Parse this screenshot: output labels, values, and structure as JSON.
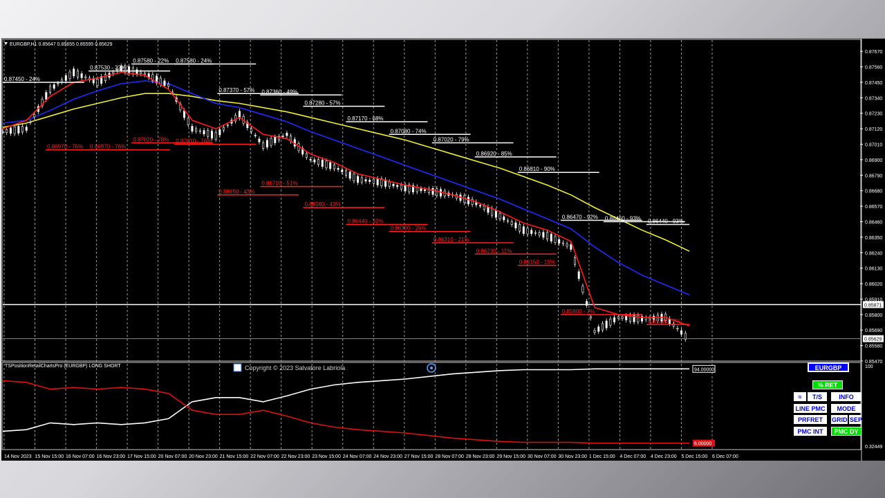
{
  "header": {
    "symbol_line": "EURGBP,H1  0.85647 0.85655 0.85595 0.85629"
  },
  "indicator": {
    "name": "TSPositionRetailChartsPro (EURGBP) LONG SHORT",
    "copyright": "Copyright © 2023 Salvatore Labriola",
    "value_top": "94.00000",
    "value_bottom": "6.00000",
    "scale_top": "100",
    "scale_bottom": "0.32449"
  },
  "buttons": {
    "symbol": "EURGBP",
    "ret": "% RET",
    "ts": "T/S",
    "info": "INFO",
    "line_pmc": "LINE PMC",
    "mode": "MODE",
    "prfret": "PRFRET",
    "grid": "GRID",
    "sep": "SEP",
    "pmc_int": "PMC INT",
    "pmc_dy": "PMC DY"
  },
  "colors": {
    "bg": "#000000",
    "price": "#ffffff",
    "ema_fast": "#ff1a1a",
    "ema_mid": "#1e2bff",
    "ema_slow": "#f2ee30",
    "long_line": "#ffffff",
    "short_line": "#e01010",
    "label_white": "#ffffff",
    "label_red": "#ff2020"
  },
  "chart_data": {
    "type": "line",
    "price_axis": [
      "0.87670",
      "0.87560",
      "0.87450",
      "0.87340",
      "0.87230",
      "0.87120",
      "0.87010",
      "0.86900",
      "0.86790",
      "0.86680",
      "0.86570",
      "0.86460",
      "0.86350",
      "0.86240",
      "0.86130",
      "0.86020",
      "0.85910",
      "0.85800",
      "0.85690",
      "0.85580",
      "0.85470"
    ],
    "price_markers": [
      "0.85871",
      "0.85629"
    ],
    "ylim": [
      0.8547,
      0.8772
    ],
    "time_axis": [
      "14 Nov 2023",
      "15 Nov 15:00",
      "16 Nov 07:00",
      "16 Nov 23:00",
      "17 Nov 15:00",
      "20 Nov 07:00",
      "20 Nov 23:00",
      "21 Nov 15:00",
      "22 Nov 07:00",
      "22 Nov 23:00",
      "23 Nov 15:00",
      "24 Nov 07:00",
      "24 Nov 23:00",
      "27 Nov 15:00",
      "28 Nov 07:00",
      "28 Nov 23:00",
      "29 Nov 15:00",
      "30 Nov 07:00",
      "30 Nov 23:00",
      "1 Dec 15:00",
      "4 Dec 07:00",
      "4 Dec 23:00",
      "5 Dec 15:00",
      "6 Dec 07:00"
    ],
    "price_series": [
      0.871,
      0.8712,
      0.874,
      0.8752,
      0.8745,
      0.8755,
      0.8751,
      0.8743,
      0.8712,
      0.8707,
      0.8722,
      0.87,
      0.8708,
      0.869,
      0.8685,
      0.8676,
      0.8674,
      0.867,
      0.8668,
      0.8665,
      0.8659,
      0.865,
      0.864,
      0.8636,
      0.8628,
      0.8568,
      0.8578,
      0.8577,
      0.8578,
      0.8562
    ],
    "ema_fast": [
      0.8712,
      0.8718,
      0.8735,
      0.8745,
      0.8748,
      0.8752,
      0.875,
      0.874,
      0.8718,
      0.8712,
      0.872,
      0.8708,
      0.8705,
      0.8694,
      0.8688,
      0.868,
      0.8676,
      0.8672,
      0.8669,
      0.8665,
      0.866,
      0.8653,
      0.8645,
      0.864,
      0.8632,
      0.8585,
      0.858,
      0.8578,
      0.8578,
      0.8572
    ],
    "ema_mid": [
      0.8716,
      0.8718,
      0.8725,
      0.8733,
      0.8739,
      0.8744,
      0.8746,
      0.8744,
      0.8737,
      0.873,
      0.8727,
      0.8722,
      0.8717,
      0.871,
      0.8704,
      0.8698,
      0.8692,
      0.8686,
      0.868,
      0.8674,
      0.8668,
      0.8662,
      0.8655,
      0.8648,
      0.8641,
      0.8628,
      0.8617,
      0.8608,
      0.8601,
      0.8594
    ],
    "ema_slow": [
      0.8713,
      0.8716,
      0.8721,
      0.8726,
      0.873,
      0.8734,
      0.8737,
      0.8737,
      0.8735,
      0.8732,
      0.873,
      0.8727,
      0.8724,
      0.872,
      0.8716,
      0.8712,
      0.8708,
      0.8704,
      0.8699,
      0.8694,
      0.8689,
      0.8684,
      0.8678,
      0.8672,
      0.8665,
      0.8656,
      0.8648,
      0.864,
      0.8633,
      0.8625
    ],
    "levels_white": [
      {
        "label": "0.87450 - 24%",
        "price": 0.8745,
        "x0": 0.0,
        "x1": 1.9
      },
      {
        "label": "0.87530 - 22%",
        "price": 0.8753,
        "x0": 2.0,
        "x1": 3.9
      },
      {
        "label": "0.87580 - 22%",
        "price": 0.8758,
        "x0": 3.0,
        "x1": 4.9
      },
      {
        "label": "0.87580 - 24%",
        "price": 0.8758,
        "x0": 4.0,
        "x1": 5.9
      },
      {
        "label": "0.87370 - 57%",
        "price": 0.8737,
        "x0": 5.0,
        "x1": 6.9
      },
      {
        "label": "0.87360 - 49%",
        "price": 0.8736,
        "x0": 6.0,
        "x1": 7.9
      },
      {
        "label": "0.87280 - 57%",
        "price": 0.8728,
        "x0": 7.0,
        "x1": 8.9
      },
      {
        "label": "0.87170 - 68%",
        "price": 0.8717,
        "x0": 8.0,
        "x1": 9.9
      },
      {
        "label": "0.87080 - 74%",
        "price": 0.8708,
        "x0": 9.0,
        "x1": 10.9
      },
      {
        "label": "0.87020 - 79%",
        "price": 0.8702,
        "x0": 10.0,
        "x1": 11.9
      },
      {
        "label": "0.86920 - 85%",
        "price": 0.8692,
        "x0": 11.0,
        "x1": 12.9
      },
      {
        "label": "0.86810 - 90%",
        "price": 0.8681,
        "x0": 12.0,
        "x1": 13.9
      },
      {
        "label": "0.86470 - 92%",
        "price": 0.8647,
        "x0": 13.0,
        "x1": 14.9
      },
      {
        "label": "0.86460 - 93%",
        "price": 0.8646,
        "x0": 14.0,
        "x1": 15.9
      },
      {
        "label": "0.86440 - 93%",
        "price": 0.8644,
        "x0": 15.0,
        "x1": 16.0
      }
    ],
    "levels_red": [
      {
        "label": "0.86970 - 76%",
        "price": 0.8697,
        "x0": 1.0,
        "x1": 2.9
      },
      {
        "label": "0.86970 - 76%",
        "price": 0.8697,
        "x0": 2.0,
        "x1": 3.9
      },
      {
        "label": "0.87020 - 78%",
        "price": 0.8702,
        "x0": 3.0,
        "x1": 4.9
      },
      {
        "label": "0.87010 - 76%",
        "price": 0.8701,
        "x0": 4.0,
        "x1": 5.9
      },
      {
        "label": "0.86650 - 43%",
        "price": 0.8665,
        "x0": 5.0,
        "x1": 6.9
      },
      {
        "label": "0.86710 - 51%",
        "price": 0.8671,
        "x0": 6.0,
        "x1": 7.9
      },
      {
        "label": "0.86560 - 43%",
        "price": 0.8656,
        "x0": 7.0,
        "x1": 8.9
      },
      {
        "label": "0.86440 - 32%",
        "price": 0.8644,
        "x0": 8.0,
        "x1": 9.9
      },
      {
        "label": "0.86390 - 26%",
        "price": 0.8639,
        "x0": 9.0,
        "x1": 10.9
      },
      {
        "label": "0.86310 - 21%",
        "price": 0.8631,
        "x0": 10.0,
        "x1": 11.9
      },
      {
        "label": "0.86230 - 11%",
        "price": 0.8623,
        "x0": 11.0,
        "x1": 12.9
      },
      {
        "label": "0.86150 - 10%",
        "price": 0.8615,
        "x0": 12.0,
        "x1": 12.9
      },
      {
        "label": "0.85800 - 7%",
        "price": 0.858,
        "x0": 13.0,
        "x1": 14.9
      },
      {
        "label": "0.85730 - 7%",
        "price": 0.8573,
        "x0": 15.0,
        "x1": 16.0
      }
    ],
    "long_series": [
      20,
      22,
      30,
      28,
      30,
      28,
      30,
      35,
      55,
      60,
      60,
      55,
      62,
      70,
      75,
      78,
      80,
      82,
      85,
      88,
      90,
      92,
      93,
      93,
      93,
      94,
      94,
      94,
      94,
      94
    ],
    "short_series": [
      80,
      78,
      70,
      72,
      70,
      72,
      70,
      65,
      45,
      40,
      40,
      45,
      38,
      30,
      25,
      22,
      20,
      18,
      15,
      12,
      10,
      8,
      7,
      7,
      7,
      6,
      6,
      6,
      6,
      6
    ]
  }
}
